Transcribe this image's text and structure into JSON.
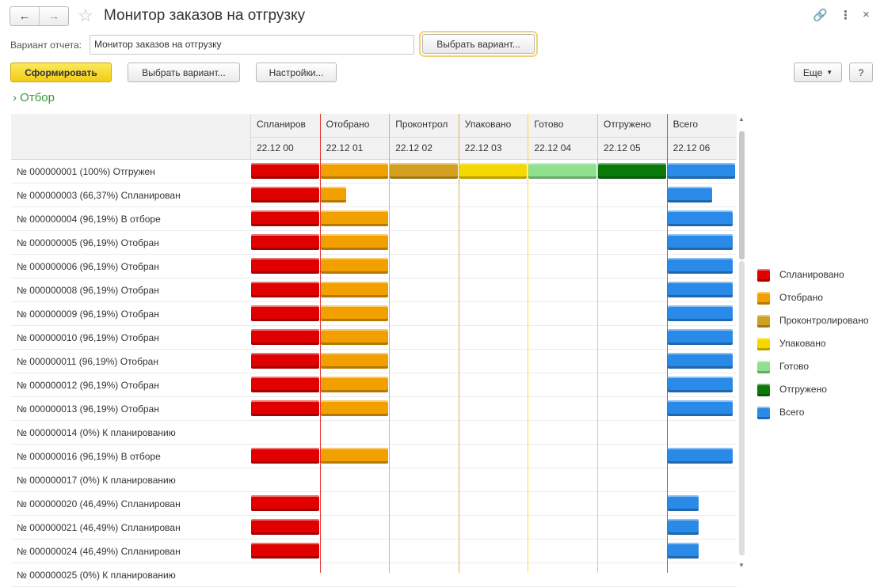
{
  "window": {
    "title": "Монитор заказов на отгрузку",
    "nav_back_icon": "arrow-left-icon",
    "nav_forward_icon": "arrow-right-icon",
    "link_icon": "link-icon",
    "menu_icon": "more-icon",
    "close_icon": "close-icon"
  },
  "variant": {
    "label": "Вариант отчета:",
    "value": "Монитор заказов на отгрузку",
    "choose_button": "Выбрать вариант..."
  },
  "toolbar": {
    "generate": "Сформировать",
    "choose_variant": "Выбрать вариант...",
    "settings": "Настройки...",
    "more": "Еще",
    "help": "?"
  },
  "filter": {
    "label": "Отбор"
  },
  "columns": [
    {
      "name": "Спланиров",
      "date": "22.12 00",
      "color": "#e00000"
    },
    {
      "name": "Отобрано",
      "date": "22.12 01",
      "color": "#f2a000"
    },
    {
      "name": "Проконтрол",
      "date": "22.12 02",
      "color": "#d4a020"
    },
    {
      "name": "Упаковано",
      "date": "22.12 03",
      "color": "#f5d800"
    },
    {
      "name": "Готово",
      "date": "22.12 04",
      "color": "#8fe08f"
    },
    {
      "name": "Отгружено",
      "date": "22.12 05",
      "color": "#0a7a0a"
    },
    {
      "name": "Всего",
      "date": "22.12 06",
      "color": "#2a8ae8"
    }
  ],
  "rows": [
    {
      "label": "№ 000000001 (100%) Отгружен",
      "bars": [
        1,
        1,
        1,
        1,
        1,
        1,
        1
      ]
    },
    {
      "label": "№ 000000003 (66,37%) Спланирован",
      "bars": [
        1,
        0.38,
        0,
        0,
        0,
        0,
        0.66
      ]
    },
    {
      "label": "№ 000000004 (96,19%) В отборе",
      "bars": [
        1,
        1,
        0,
        0,
        0,
        0,
        0.96
      ]
    },
    {
      "label": "№ 000000005 (96,19%) Отобран",
      "bars": [
        1,
        1,
        0,
        0,
        0,
        0,
        0.96
      ]
    },
    {
      "label": "№ 000000006 (96,19%) Отобран",
      "bars": [
        1,
        1,
        0,
        0,
        0,
        0,
        0.96
      ]
    },
    {
      "label": "№ 000000008 (96,19%) Отобран",
      "bars": [
        1,
        1,
        0,
        0,
        0,
        0,
        0.96
      ]
    },
    {
      "label": "№ 000000009 (96,19%) Отобран",
      "bars": [
        1,
        1,
        0,
        0,
        0,
        0,
        0.96
      ]
    },
    {
      "label": "№ 000000010 (96,19%) Отобран",
      "bars": [
        1,
        1,
        0,
        0,
        0,
        0,
        0.96
      ]
    },
    {
      "label": "№ 000000011 (96,19%) Отобран",
      "bars": [
        1,
        1,
        0,
        0,
        0,
        0,
        0.96
      ]
    },
    {
      "label": "№ 000000012 (96,19%) Отобран",
      "bars": [
        1,
        1,
        0,
        0,
        0,
        0,
        0.96
      ]
    },
    {
      "label": "№ 000000013 (96,19%) Отобран",
      "bars": [
        1,
        1,
        0,
        0,
        0,
        0,
        0.96
      ]
    },
    {
      "label": "№ 000000014 (0%) К планированию",
      "bars": [
        0,
        0,
        0,
        0,
        0,
        0,
        0
      ]
    },
    {
      "label": "№ 000000016 (96,19%) В отборе",
      "bars": [
        1,
        1,
        0,
        0,
        0,
        0,
        0.96
      ]
    },
    {
      "label": "№ 000000017 (0%) К планированию",
      "bars": [
        0,
        0,
        0,
        0,
        0,
        0,
        0
      ]
    },
    {
      "label": "№ 000000020 (46,49%) Спланирован",
      "bars": [
        1,
        0,
        0,
        0,
        0,
        0,
        0.46
      ]
    },
    {
      "label": "№ 000000021 (46,49%) Спланирован",
      "bars": [
        1,
        0,
        0,
        0,
        0,
        0,
        0.46
      ]
    },
    {
      "label": "№ 000000024 (46,49%) Спланирован",
      "bars": [
        1,
        0,
        0,
        0,
        0,
        0,
        0.46
      ]
    },
    {
      "label": "№ 000000025 (0%) К планированию",
      "bars": [
        0,
        0,
        0,
        0,
        0,
        0,
        0
      ]
    }
  ],
  "legend": [
    {
      "label": "Спланировано",
      "color": "#e00000"
    },
    {
      "label": "Отобрано",
      "color": "#f2a000"
    },
    {
      "label": "Проконтролировано",
      "color": "#d4a020"
    },
    {
      "label": "Упаковано",
      "color": "#f5d800"
    },
    {
      "label": "Готово",
      "color": "#8fe08f"
    },
    {
      "label": "Отгружено",
      "color": "#0a7a0a"
    },
    {
      "label": "Всего",
      "color": "#2a8ae8"
    }
  ]
}
